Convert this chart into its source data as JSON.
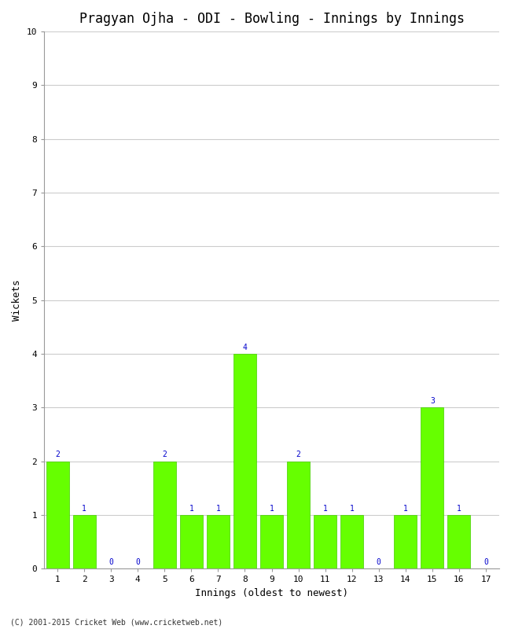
{
  "title": "Pragyan Ojha - ODI - Bowling - Innings by Innings",
  "xlabel": "Innings (oldest to newest)",
  "ylabel": "Wickets",
  "innings": [
    1,
    2,
    3,
    4,
    5,
    6,
    7,
    8,
    9,
    10,
    11,
    12,
    13,
    14,
    15,
    16,
    17
  ],
  "wickets": [
    2,
    1,
    0,
    0,
    2,
    1,
    1,
    4,
    1,
    2,
    1,
    1,
    0,
    1,
    3,
    1,
    0
  ],
  "bar_color": "#66ff00",
  "bar_edge_color": "#44cc00",
  "label_color": "#0000cc",
  "ylim": [
    0,
    10
  ],
  "yticks": [
    0,
    1,
    2,
    3,
    4,
    5,
    6,
    7,
    8,
    9,
    10
  ],
  "background_color": "#ffffff",
  "grid_color": "#cccccc",
  "title_fontsize": 12,
  "axis_label_fontsize": 9,
  "tick_label_fontsize": 8,
  "bar_label_fontsize": 7,
  "copyright": "(C) 2001-2015 Cricket Web (www.cricketweb.net)"
}
